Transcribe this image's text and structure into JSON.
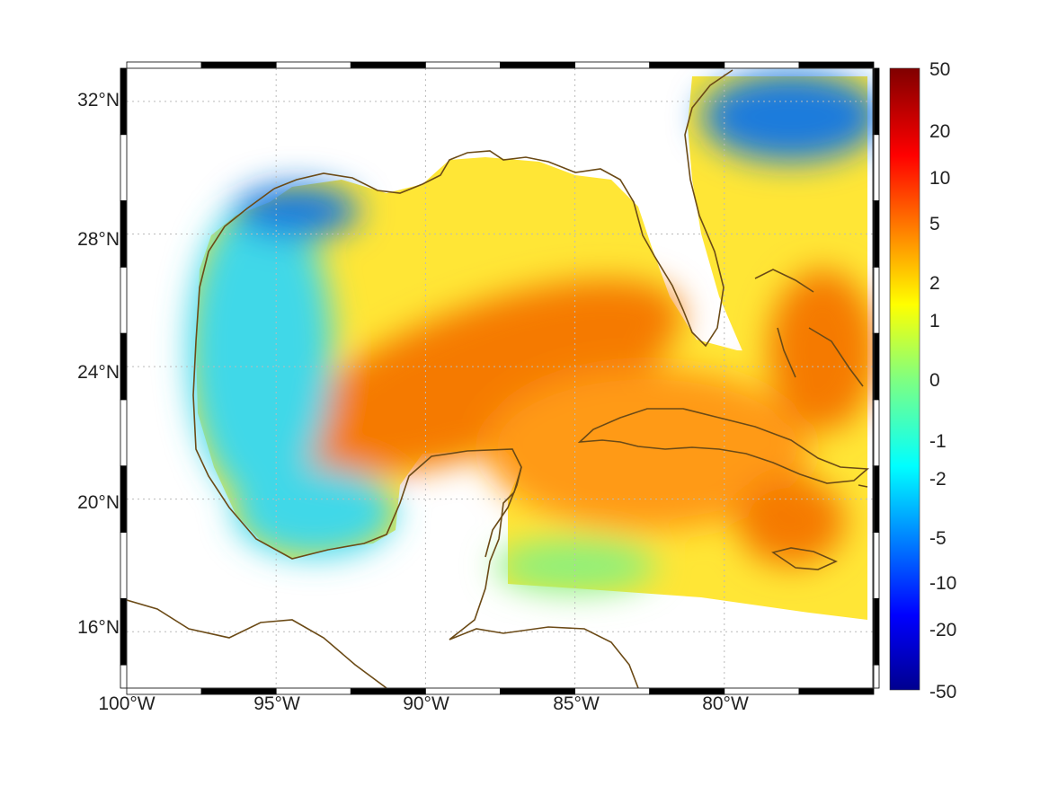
{
  "map": {
    "lon_range": [
      -100,
      -75
    ],
    "lat_range": [
      14.3,
      33
    ],
    "lon_ticks": [
      "100°W",
      "95°W",
      "90°W",
      "85°W",
      "80°W"
    ],
    "lat_ticks": [
      "32°N",
      "28°N",
      "24°N",
      "20°N",
      "16°N"
    ],
    "grid": true,
    "frame_style": "alternating-black-white",
    "coastline_color": "#6b4a16"
  },
  "colorbar": {
    "labels": [
      "50",
      "20",
      "10",
      "5",
      "2",
      "1",
      "0",
      "-1",
      "-2",
      "-5",
      "-10",
      "-20",
      "-50"
    ],
    "colormap": "jet",
    "placement": "right"
  },
  "field_colors": {
    "deep_blue": "#1f7bdc",
    "cyan": "#3fd8e8",
    "green": "#8ff07a",
    "yellow": "#ffe636",
    "orange": "#ff9a14",
    "dark_orange": "#f57a00"
  }
}
